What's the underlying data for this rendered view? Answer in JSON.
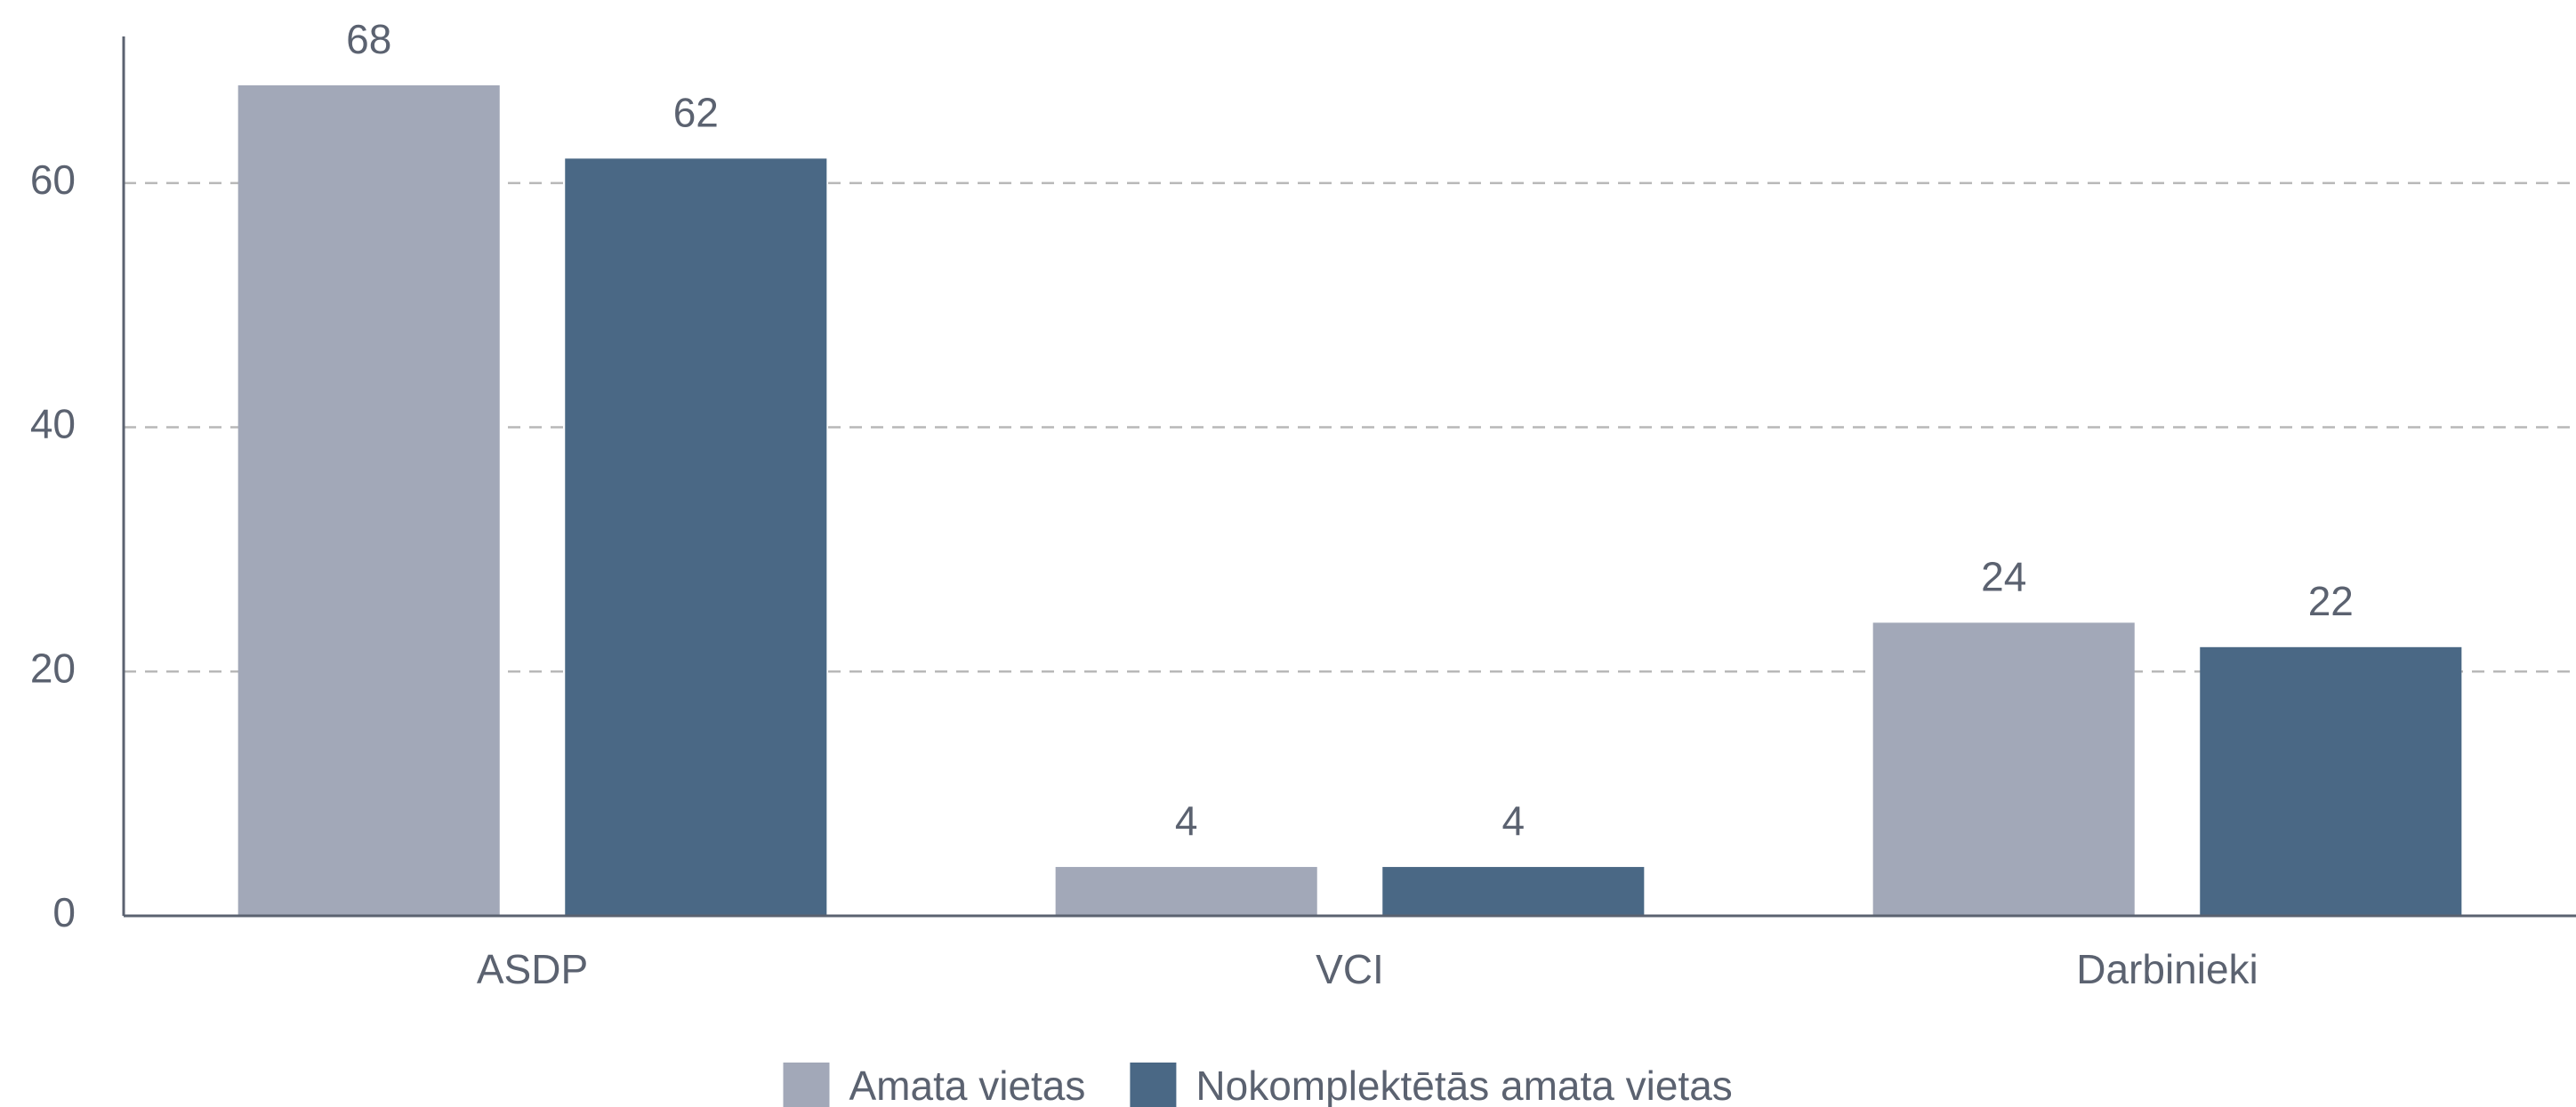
{
  "chart_data": {
    "type": "bar",
    "categories": [
      "ASDP",
      "VCI",
      "Darbinieki"
    ],
    "series": [
      {
        "name": "Amata vietas",
        "color": "#a2a8b8",
        "values": [
          68,
          4,
          24
        ]
      },
      {
        "name": "Nokomplektētās amata vietas",
        "color": "#4a6885",
        "values": [
          62,
          4,
          22
        ]
      }
    ],
    "ylim": [
      0,
      72
    ],
    "yticks": [
      0,
      20,
      40,
      60
    ],
    "grid": true,
    "legend": "bottom"
  }
}
